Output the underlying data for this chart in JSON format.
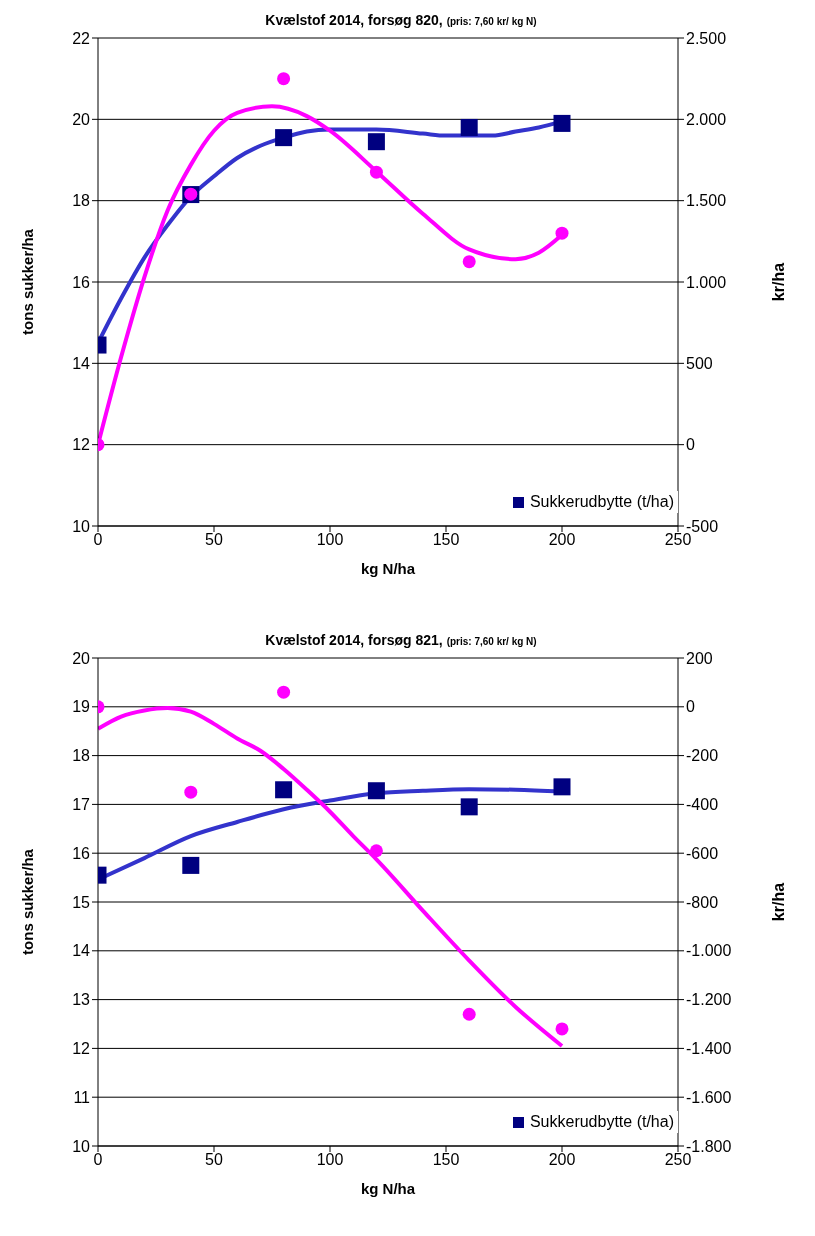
{
  "chart_data": [
    {
      "type": "scatter",
      "title": "Kvælstof 2014, forsøg 820,",
      "subtitle": "(pris: 7,60 kr/ kg N)",
      "xlabel": "kg N/ha",
      "ylabel": "tons sukker/ha",
      "y2label": "kr/ha",
      "xlim": [
        0,
        250
      ],
      "xticks": [
        0,
        50,
        100,
        150,
        200,
        250
      ],
      "ylim": [
        10,
        22
      ],
      "yticks": [
        10,
        12,
        14,
        16,
        18,
        20,
        22
      ],
      "y2lim": [
        -500,
        2500
      ],
      "y2ticks": [
        -500,
        0,
        500,
        {
          "value": 1000,
          "label": "1.000"
        },
        {
          "value": 1500,
          "label": "1.500"
        },
        {
          "value": 2000,
          "label": "2.000"
        },
        {
          "value": 2500,
          "label": "2.500"
        }
      ],
      "grid": "y",
      "legend": "bottom right",
      "series": [
        {
          "type": "scatter",
          "name": "Sukkerudbytte (t/ha)",
          "color": "#000080",
          "marker": "square",
          "x": [
            0,
            40,
            80,
            120,
            160,
            200
          ],
          "values": [
            14.45,
            18.15,
            19.55,
            19.45,
            19.8,
            19.9
          ]
        },
        {
          "type": "scatter",
          "axis": "y2",
          "color": "#ff00ff",
          "marker": "circle",
          "x": [
            0,
            40,
            80,
            120,
            160,
            200
          ],
          "values": [
            0,
            1540,
            2250,
            1675,
            1125,
            1300
          ]
        },
        {
          "type": "line",
          "color": "#3333cc",
          "marker": "none",
          "x": [
            0,
            10,
            20,
            30,
            40,
            50,
            60,
            70,
            80,
            90,
            100,
            120,
            140,
            150,
            160,
            170,
            180,
            190,
            200
          ],
          "values": [
            14.5,
            15.6,
            16.6,
            17.4,
            18.1,
            18.6,
            19.05,
            19.35,
            19.55,
            19.7,
            19.75,
            19.75,
            19.65,
            19.6,
            19.6,
            19.6,
            19.7,
            19.8,
            19.95
          ]
        },
        {
          "type": "line",
          "axis": "y2",
          "color": "#ff00ff",
          "marker": "none",
          "x": [
            0,
            10,
            20,
            30,
            40,
            50,
            60,
            75,
            90,
            100,
            120,
            140,
            160,
            180,
            190,
            200
          ],
          "values": [
            0,
            540,
            1030,
            1440,
            1720,
            1930,
            2040,
            2080,
            2020,
            1930,
            1680,
            1420,
            1200,
            1140,
            1180,
            1290
          ]
        }
      ]
    },
    {
      "type": "scatter",
      "title": "Kvælstof 2014, forsøg 821,",
      "subtitle": "(pris: 7,60 kr/ kg N)",
      "xlabel": "kg N/ha",
      "ylabel": "tons sukker/ha",
      "y2label": "kr/ha",
      "xlim": [
        0,
        250
      ],
      "xticks": [
        0,
        50,
        100,
        150,
        200,
        250
      ],
      "ylim": [
        10,
        20
      ],
      "yticks": [
        10,
        11,
        12,
        13,
        14,
        15,
        16,
        17,
        18,
        19,
        20
      ],
      "y2lim": [
        -1800,
        200
      ],
      "y2ticks": [
        {
          "value": -1800,
          "label": "-1.800"
        },
        {
          "value": -1600,
          "label": "-1.600"
        },
        {
          "value": -1400,
          "label": "-1.400"
        },
        {
          "value": -1200,
          "label": "-1.200"
        },
        {
          "value": -1000,
          "label": "-1.000"
        },
        -800,
        -600,
        -400,
        -200,
        0,
        200
      ],
      "grid": "y",
      "legend": "bottom right",
      "series": [
        {
          "type": "scatter",
          "name": "Sukkerudbytte (t/ha)",
          "color": "#000080",
          "marker": "square",
          "x": [
            0,
            40,
            80,
            120,
            160,
            200
          ],
          "values": [
            15.55,
            15.75,
            17.3,
            17.28,
            16.95,
            17.36
          ]
        },
        {
          "type": "scatter",
          "axis": "y2",
          "color": "#ff00ff",
          "marker": "circle",
          "x": [
            0,
            40,
            80,
            120,
            160,
            200
          ],
          "values": [
            0,
            -350,
            60,
            -590,
            -1260,
            -1320
          ]
        },
        {
          "type": "line",
          "color": "#3333cc",
          "marker": "none",
          "x": [
            0,
            20,
            40,
            60,
            80,
            100,
            120,
            140,
            160,
            180,
            200
          ],
          "values": [
            15.46,
            15.9,
            16.35,
            16.64,
            16.9,
            17.08,
            17.23,
            17.28,
            17.31,
            17.3,
            17.26
          ]
        },
        {
          "type": "line",
          "axis": "y2",
          "color": "#ff00ff",
          "marker": "none",
          "x": [
            0,
            10,
            20,
            30,
            40,
            50,
            60,
            70,
            80,
            90,
            100,
            110,
            120,
            140,
            160,
            180,
            200
          ],
          "values": [
            -90,
            -40,
            -15,
            -5,
            -20,
            -70,
            -130,
            -180,
            -255,
            -340,
            -430,
            -530,
            -625,
            -835,
            -1040,
            -1230,
            -1390
          ]
        }
      ]
    }
  ]
}
